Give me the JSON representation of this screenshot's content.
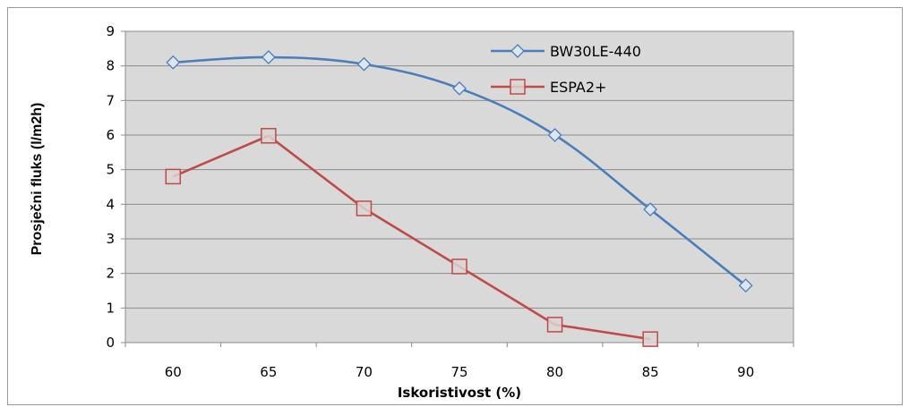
{
  "chart_data": {
    "type": "line",
    "title": "",
    "xlabel": "Iskoristivost (%)",
    "ylabel": "Prosječni fluks (l/m2h)",
    "categories": [
      "60",
      "65",
      "70",
      "75",
      "80",
      "85",
      "90"
    ],
    "ylim": [
      0,
      9
    ],
    "yticks": [
      "0",
      "1",
      "2",
      "3",
      "4",
      "5",
      "6",
      "7",
      "8",
      "9"
    ],
    "grid": true,
    "legend_position": "top-right",
    "series": [
      {
        "name": "BW30LE-440",
        "color": "#4a7ebb",
        "marker": "diamond",
        "values": [
          8.1,
          8.25,
          8.05,
          7.35,
          6.0,
          3.85,
          1.65
        ]
      },
      {
        "name": "ESPA2+",
        "color": "#be4b48",
        "marker": "square",
        "values": [
          4.8,
          5.98,
          3.88,
          2.2,
          0.52,
          0.1,
          null
        ]
      }
    ]
  }
}
